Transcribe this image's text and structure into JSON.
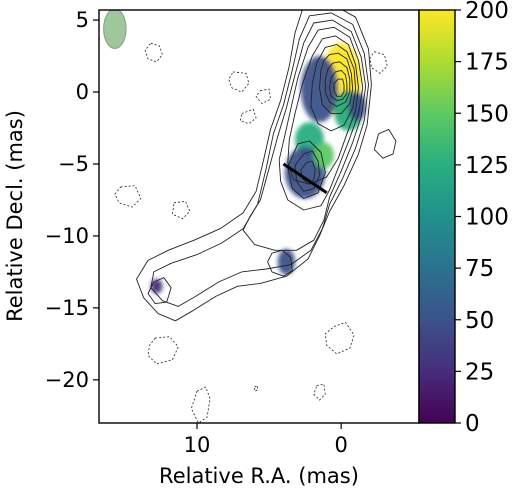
{
  "chart_data": {
    "type": "contour-image",
    "xlabel": "Relative R.A. (mas)",
    "ylabel": "Relative Decl. (mas)",
    "xlim": [
      16.8,
      -5.4
    ],
    "ylim": [
      -23,
      5.7
    ],
    "x_ticks": [
      10,
      0
    ],
    "y_ticks": [
      5,
      0,
      -5,
      -10,
      -15,
      -20
    ],
    "x_tick_labels": [
      "10",
      "0"
    ],
    "y_tick_labels": [
      "5",
      "0",
      "−5",
      "−10",
      "−15",
      "−20"
    ],
    "colorbar": {
      "range": [
        0,
        200
      ],
      "ticks": [
        0,
        25,
        50,
        75,
        100,
        125,
        150,
        175,
        200
      ],
      "tick_labels": [
        "0",
        "25",
        "50",
        "75",
        "100",
        "125",
        "150",
        "175",
        "200"
      ],
      "colormap": "viridis",
      "colors": [
        "#440154",
        "#472d7b",
        "#3b528b",
        "#2c728e",
        "#21918c",
        "#28ae80",
        "#5ec962",
        "#addc30",
        "#fde725"
      ]
    },
    "beam": {
      "x": 15.7,
      "y": 4.4,
      "major_mas": 2.5,
      "minor_mas": 1.3,
      "color": "#9ec79b"
    },
    "core": {
      "x": 0,
      "y": 0
    },
    "cut_line": {
      "x1": 4.0,
      "y1": -5.0,
      "x2": 1.0,
      "y2": -7.0
    },
    "contours": {
      "solid": [
        [
          [
            2.6,
            6.0
          ],
          [
            0.8,
            6.2
          ],
          [
            -1.0,
            5.2
          ],
          [
            -1.9,
            3.0
          ],
          [
            -2.1,
            0.5
          ],
          [
            -1.8,
            -2.3
          ],
          [
            -1.2,
            -4.3
          ],
          [
            -0.2,
            -6.5
          ],
          [
            0.8,
            -8.3
          ],
          [
            1.5,
            -10.0
          ],
          [
            2.3,
            -11.6
          ],
          [
            3.8,
            -12.8
          ],
          [
            5.6,
            -13.3
          ],
          [
            7.2,
            -13.5
          ],
          [
            8.7,
            -14.2
          ],
          [
            10.3,
            -15.2
          ],
          [
            11.5,
            -15.9
          ],
          [
            12.7,
            -15.4
          ],
          [
            13.7,
            -14.3
          ],
          [
            14.2,
            -13.0
          ],
          [
            13.4,
            -11.7
          ],
          [
            12.0,
            -11.0
          ],
          [
            10.2,
            -10.3
          ],
          [
            8.4,
            -9.5
          ],
          [
            6.8,
            -8.4
          ],
          [
            5.9,
            -6.9
          ],
          [
            5.4,
            -4.8
          ],
          [
            4.9,
            -2.6
          ],
          [
            4.2,
            -0.6
          ],
          [
            3.6,
            1.8
          ],
          [
            3.2,
            4.1
          ]
        ],
        [
          [
            2.2,
            5.3
          ],
          [
            0.7,
            5.5
          ],
          [
            -0.8,
            4.7
          ],
          [
            -1.6,
            2.7
          ],
          [
            -1.9,
            0.5
          ],
          [
            -1.6,
            -2.0
          ],
          [
            -1.0,
            -3.9
          ],
          [
            -0.1,
            -6.0
          ],
          [
            0.8,
            -7.8
          ],
          [
            1.3,
            -9.5
          ],
          [
            2.1,
            -11.0
          ],
          [
            3.5,
            -12.0
          ],
          [
            5.2,
            -12.3
          ],
          [
            6.9,
            -12.5
          ],
          [
            8.5,
            -13.2
          ],
          [
            10.1,
            -14.2
          ],
          [
            11.3,
            -14.9
          ],
          [
            12.4,
            -14.5
          ],
          [
            13.2,
            -13.6
          ],
          [
            13.0,
            -12.5
          ],
          [
            11.8,
            -11.9
          ],
          [
            10.0,
            -11.3
          ],
          [
            8.3,
            -10.5
          ],
          [
            6.8,
            -9.5
          ],
          [
            5.8,
            -7.8
          ],
          [
            5.2,
            -5.3
          ],
          [
            4.7,
            -2.9
          ],
          [
            4.0,
            -0.9
          ],
          [
            3.4,
            1.5
          ],
          [
            2.9,
            3.7
          ]
        ],
        [
          [
            1.9,
            4.8
          ],
          [
            0.6,
            5.0
          ],
          [
            -0.7,
            4.2
          ],
          [
            -1.4,
            2.4
          ],
          [
            -1.7,
            0.4
          ],
          [
            -1.4,
            -1.7
          ],
          [
            -0.8,
            -3.5
          ],
          [
            0.0,
            -5.5
          ],
          [
            0.8,
            -7.3
          ],
          [
            1.2,
            -8.9
          ],
          [
            1.9,
            -10.3
          ],
          [
            3.1,
            -11.0
          ],
          [
            4.6,
            -11.0
          ],
          [
            6.0,
            -10.6
          ],
          [
            6.8,
            -9.6
          ],
          [
            6.3,
            -8.6
          ],
          [
            5.6,
            -7.5
          ],
          [
            5.0,
            -5.3
          ],
          [
            4.4,
            -3.1
          ],
          [
            3.8,
            -1.1
          ],
          [
            3.2,
            1.2
          ],
          [
            2.6,
            3.4
          ]
        ],
        [
          [
            1.6,
            4.3
          ],
          [
            0.5,
            4.5
          ],
          [
            -0.6,
            3.8
          ],
          [
            -1.2,
            2.2
          ],
          [
            -1.5,
            0.3
          ],
          [
            -1.2,
            -1.5
          ],
          [
            -0.6,
            -3.2
          ],
          [
            0.1,
            -5.0
          ],
          [
            0.8,
            -6.8
          ],
          [
            1.4,
            -7.9
          ],
          [
            2.6,
            -8.2
          ],
          [
            3.7,
            -7.5
          ],
          [
            4.2,
            -6.2
          ],
          [
            4.3,
            -4.7
          ],
          [
            3.9,
            -3.0
          ],
          [
            3.5,
            -1.2
          ],
          [
            3.0,
            1.0
          ],
          [
            2.3,
            3.1
          ]
        ],
        [
          [
            1.3,
            3.7
          ],
          [
            0.4,
            3.9
          ],
          [
            -0.5,
            3.3
          ],
          [
            -1.0,
            1.9
          ],
          [
            -1.2,
            0.3
          ],
          [
            -1.0,
            -1.3
          ],
          [
            -0.4,
            -2.9
          ],
          [
            0.2,
            -4.6
          ],
          [
            1.0,
            -5.9
          ],
          [
            2.2,
            -6.4
          ],
          [
            3.3,
            -6.1
          ],
          [
            3.7,
            -4.9
          ],
          [
            3.6,
            -3.3
          ],
          [
            3.2,
            -1.5
          ],
          [
            2.7,
            0.5
          ],
          [
            2.0,
            2.5
          ]
        ],
        [
          [
            1.1,
            3.1
          ],
          [
            0.3,
            3.3
          ],
          [
            -0.4,
            2.8
          ],
          [
            -0.9,
            1.6
          ],
          [
            -1.0,
            0.2
          ],
          [
            -0.8,
            -1.1
          ],
          [
            -0.2,
            -2.3
          ],
          [
            0.7,
            -2.7
          ],
          [
            1.6,
            -2.2
          ],
          [
            2.1,
            -1.0
          ],
          [
            2.0,
            0.6
          ],
          [
            1.7,
            2.0
          ]
        ],
        [
          [
            0.8,
            2.6
          ],
          [
            0.2,
            2.7
          ],
          [
            -0.4,
            2.3
          ],
          [
            -0.7,
            1.3
          ],
          [
            -0.8,
            0.2
          ],
          [
            -0.6,
            -0.8
          ],
          [
            0.0,
            -1.5
          ],
          [
            0.7,
            -1.5
          ],
          [
            1.3,
            -0.9
          ],
          [
            1.5,
            0.3
          ],
          [
            1.4,
            1.5
          ],
          [
            1.2,
            2.2
          ]
        ],
        [
          [
            0.6,
            2.0
          ],
          [
            0.1,
            2.1
          ],
          [
            -0.4,
            1.7
          ],
          [
            -0.6,
            0.9
          ],
          [
            -0.6,
            0.0
          ],
          [
            -0.3,
            -0.7
          ],
          [
            0.3,
            -1.0
          ],
          [
            0.8,
            -0.7
          ],
          [
            1.1,
            0.0
          ],
          [
            1.1,
            0.9
          ],
          [
            0.9,
            1.6
          ]
        ],
        [
          [
            0.4,
            1.4
          ],
          [
            0.0,
            1.5
          ],
          [
            -0.3,
            1.2
          ],
          [
            -0.4,
            0.6
          ],
          [
            -0.4,
            -0.1
          ],
          [
            -0.1,
            -0.5
          ],
          [
            0.3,
            -0.6
          ],
          [
            0.7,
            -0.3
          ],
          [
            0.8,
            0.3
          ],
          [
            0.7,
            1.0
          ]
        ],
        [
          [
            0.2,
            0.9
          ],
          [
            -0.1,
            0.9
          ],
          [
            -0.2,
            0.5
          ],
          [
            -0.2,
            0.0
          ],
          [
            0.0,
            -0.3
          ],
          [
            0.3,
            -0.3
          ],
          [
            0.5,
            0.1
          ],
          [
            0.5,
            0.6
          ]
        ],
        [
          [
            3.0,
            -3.6
          ],
          [
            2.2,
            -3.4
          ],
          [
            1.4,
            -4.2
          ],
          [
            1.1,
            -5.6
          ],
          [
            1.6,
            -7.0
          ],
          [
            2.6,
            -7.4
          ],
          [
            3.4,
            -6.7
          ],
          [
            3.7,
            -5.2
          ]
        ],
        [
          [
            2.6,
            -4.3
          ],
          [
            2.0,
            -4.1
          ],
          [
            1.6,
            -4.8
          ],
          [
            1.5,
            -5.8
          ],
          [
            1.9,
            -6.7
          ],
          [
            2.6,
            -6.9
          ],
          [
            3.1,
            -6.2
          ],
          [
            3.2,
            -5.1
          ]
        ],
        [
          [
            2.4,
            -4.9
          ],
          [
            2.0,
            -4.8
          ],
          [
            1.8,
            -5.4
          ],
          [
            1.9,
            -6.1
          ],
          [
            2.3,
            -6.4
          ],
          [
            2.7,
            -6.0
          ],
          [
            2.8,
            -5.4
          ]
        ],
        [
          [
            -2.6,
            -2.9
          ],
          [
            -3.3,
            -2.6
          ],
          [
            -3.8,
            -3.4
          ],
          [
            -3.6,
            -4.3
          ],
          [
            -2.9,
            -4.6
          ],
          [
            -2.3,
            -4.0
          ]
        ],
        [
          [
            13.0,
            -13.2
          ],
          [
            12.3,
            -12.9
          ],
          [
            11.8,
            -13.6
          ],
          [
            12.1,
            -14.6
          ],
          [
            12.9,
            -14.7
          ],
          [
            13.4,
            -14.0
          ]
        ],
        [
          [
            4.8,
            -11.2
          ],
          [
            4.1,
            -11.0
          ],
          [
            3.5,
            -11.5
          ],
          [
            3.4,
            -12.4
          ],
          [
            4.0,
            -12.8
          ],
          [
            4.8,
            -12.5
          ],
          [
            5.1,
            -11.8
          ]
        ]
      ],
      "dashed": [
        [
          [
            13.2,
            3.4
          ],
          [
            12.6,
            3.2
          ],
          [
            12.4,
            2.6
          ],
          [
            12.8,
            2.1
          ],
          [
            13.4,
            2.3
          ],
          [
            13.6,
            2.9
          ]
        ],
        [
          [
            7.5,
            1.4
          ],
          [
            6.6,
            1.3
          ],
          [
            6.4,
            0.6
          ],
          [
            6.9,
            0.0
          ],
          [
            7.6,
            0.3
          ],
          [
            7.8,
            0.9
          ]
        ],
        [
          [
            6.9,
            -1.5
          ],
          [
            6.1,
            -1.2
          ],
          [
            5.9,
            -1.8
          ],
          [
            6.4,
            -2.2
          ],
          [
            7.0,
            -2.0
          ]
        ],
        [
          [
            5.6,
            0.1
          ],
          [
            5.0,
            0.2
          ],
          [
            4.9,
            -0.5
          ],
          [
            5.5,
            -0.8
          ],
          [
            5.9,
            -0.3
          ]
        ],
        [
          [
            -2.3,
            2.8
          ],
          [
            -3.0,
            2.6
          ],
          [
            -3.2,
            1.8
          ],
          [
            -2.7,
            1.3
          ],
          [
            -2.1,
            1.7
          ],
          [
            -2.0,
            2.4
          ]
        ],
        [
          [
            11.6,
            -7.7
          ],
          [
            10.8,
            -7.6
          ],
          [
            10.5,
            -8.3
          ],
          [
            11.0,
            -8.8
          ],
          [
            11.7,
            -8.5
          ]
        ],
        [
          [
            15.3,
            -6.6
          ],
          [
            14.3,
            -6.5
          ],
          [
            13.9,
            -7.4
          ],
          [
            14.5,
            -8.0
          ],
          [
            15.4,
            -7.7
          ],
          [
            15.7,
            -7.1
          ]
        ],
        [
          [
            12.9,
            -17.1
          ],
          [
            11.9,
            -17.0
          ],
          [
            11.3,
            -17.7
          ],
          [
            11.7,
            -18.6
          ],
          [
            12.8,
            -18.9
          ],
          [
            13.4,
            -18.3
          ],
          [
            13.3,
            -17.6
          ]
        ],
        [
          [
            0.5,
            -16.3
          ],
          [
            -0.3,
            -16.0
          ],
          [
            -0.9,
            -16.9
          ],
          [
            -0.6,
            -17.8
          ],
          [
            0.3,
            -18.2
          ],
          [
            1.0,
            -17.6
          ],
          [
            1.1,
            -16.8
          ]
        ],
        [
          [
            10.0,
            -20.8
          ],
          [
            9.4,
            -20.5
          ],
          [
            9.1,
            -21.3
          ],
          [
            9.3,
            -22.6
          ],
          [
            9.9,
            -23.0
          ],
          [
            10.4,
            -22.0
          ]
        ],
        [
          [
            1.7,
            -20.4
          ],
          [
            1.2,
            -20.3
          ],
          [
            1.1,
            -21.0
          ],
          [
            1.5,
            -21.4
          ],
          [
            1.9,
            -21.0
          ]
        ],
        [
          [
            6.0,
            -20.5
          ],
          [
            5.8,
            -20.4
          ],
          [
            5.8,
            -20.7
          ],
          [
            6.0,
            -20.8
          ]
        ]
      ]
    },
    "color_blobs": [
      {
        "x": 0.0,
        "y": 0.8,
        "rx": 1.4,
        "ry": 2.6,
        "value": 190
      },
      {
        "x": 1.5,
        "y": 0.2,
        "rx": 1.3,
        "ry": 2.3,
        "value": 45
      },
      {
        "x": -0.5,
        "y": -1.3,
        "rx": 1.0,
        "ry": 1.4,
        "value": 120
      },
      {
        "x": -1.1,
        "y": -1.0,
        "rx": 0.6,
        "ry": 1.0,
        "value": 55
      },
      {
        "x": 2.2,
        "y": -3.3,
        "rx": 1.0,
        "ry": 1.2,
        "value": 130
      },
      {
        "x": 2.5,
        "y": -5.6,
        "rx": 1.4,
        "ry": 1.8,
        "value": 40
      },
      {
        "x": 1.2,
        "y": -4.4,
        "rx": 0.7,
        "ry": 0.9,
        "value": 140
      },
      {
        "x": 3.8,
        "y": -11.8,
        "rx": 0.6,
        "ry": 0.9,
        "value": 40
      },
      {
        "x": 12.8,
        "y": -13.5,
        "rx": 0.4,
        "ry": 0.5,
        "value": 30
      }
    ]
  }
}
